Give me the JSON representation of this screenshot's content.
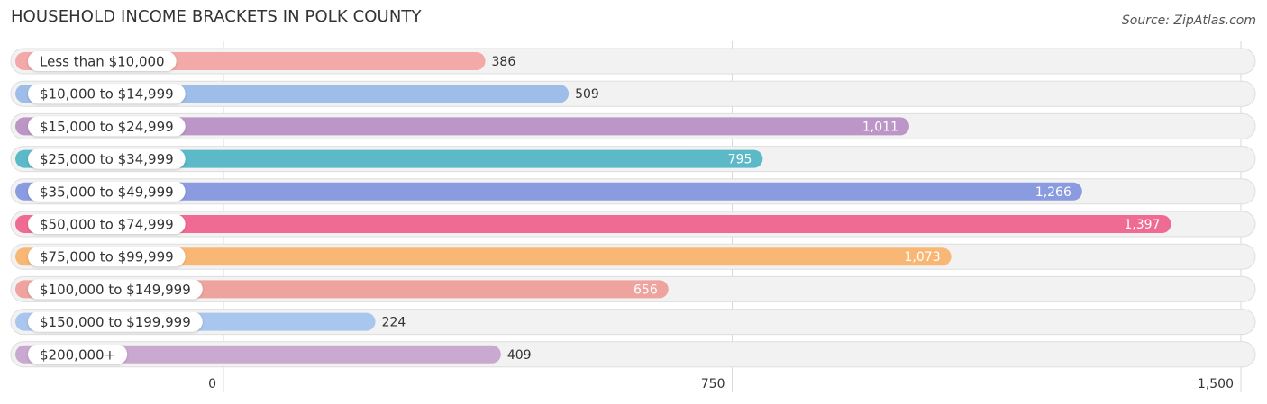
{
  "chart_data": {
    "type": "bar",
    "orientation": "horizontal",
    "title": "HOUSEHOLD INCOME BRACKETS IN POLK COUNTY",
    "source": "Source: ZipAtlas.com",
    "categories": [
      "Less than $10,000",
      "$10,000 to $14,999",
      "$15,000 to $24,999",
      "$25,000 to $34,999",
      "$35,000 to $49,999",
      "$50,000 to $74,999",
      "$75,000 to $99,999",
      "$100,000 to $149,999",
      "$150,000 to $199,999",
      "$200,000+"
    ],
    "values": [
      386,
      509,
      1011,
      795,
      1266,
      1397,
      1073,
      656,
      224,
      409
    ],
    "value_labels": [
      "386",
      "509",
      "1,011",
      "795",
      "1,266",
      "1,397",
      "1,073",
      "656",
      "224",
      "409"
    ],
    "colors": [
      "#f2a9a8",
      "#9ebde8",
      "#bb96c7",
      "#5bb9c8",
      "#8b9be0",
      "#f06b94",
      "#f9b775",
      "#eea39e",
      "#a9c6ee",
      "#c9a9cf"
    ],
    "xlim": [
      0,
      1500
    ],
    "xticks": [
      0,
      750,
      1500
    ],
    "xtick_labels": [
      "0",
      "750",
      "1,500"
    ],
    "grid": true
  }
}
